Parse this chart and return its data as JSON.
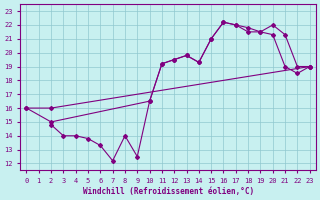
{
  "xlabel": "Windchill (Refroidissement éolien,°C)",
  "line_color": "#800080",
  "bg_color": "#c8f0f0",
  "grid_color": "#90c8d0",
  "xlim": [
    -0.5,
    23.5
  ],
  "ylim": [
    11.5,
    23.5
  ],
  "xticks": [
    0,
    1,
    2,
    3,
    4,
    5,
    6,
    7,
    8,
    9,
    10,
    11,
    12,
    13,
    14,
    15,
    16,
    17,
    18,
    19,
    20,
    21,
    22,
    23
  ],
  "yticks": [
    12,
    13,
    14,
    15,
    16,
    17,
    18,
    19,
    20,
    21,
    22,
    23
  ],
  "line1_x": [
    0,
    2,
    23
  ],
  "line1_y": [
    16.0,
    16.0,
    19.0
  ],
  "line2_x": [
    0,
    2,
    10,
    11,
    12,
    13,
    14,
    15,
    16,
    17,
    18,
    19,
    20,
    21,
    22,
    23
  ],
  "line2_y": [
    16.0,
    15.0,
    16.5,
    19.2,
    19.5,
    19.8,
    19.3,
    21.0,
    22.2,
    22.0,
    21.8,
    21.5,
    22.0,
    21.3,
    19.0,
    19.0
  ],
  "line3_x": [
    2,
    3,
    4,
    5,
    6,
    7,
    8,
    9,
    10,
    11,
    12,
    13,
    14,
    15,
    16,
    17,
    18,
    19,
    20,
    21,
    22,
    23
  ],
  "line3_y": [
    14.8,
    14.0,
    14.0,
    13.8,
    13.3,
    12.2,
    14.0,
    12.5,
    16.5,
    19.2,
    19.5,
    19.8,
    19.3,
    21.0,
    22.2,
    22.0,
    21.5,
    21.5,
    21.3,
    19.0,
    18.5,
    19.0
  ]
}
